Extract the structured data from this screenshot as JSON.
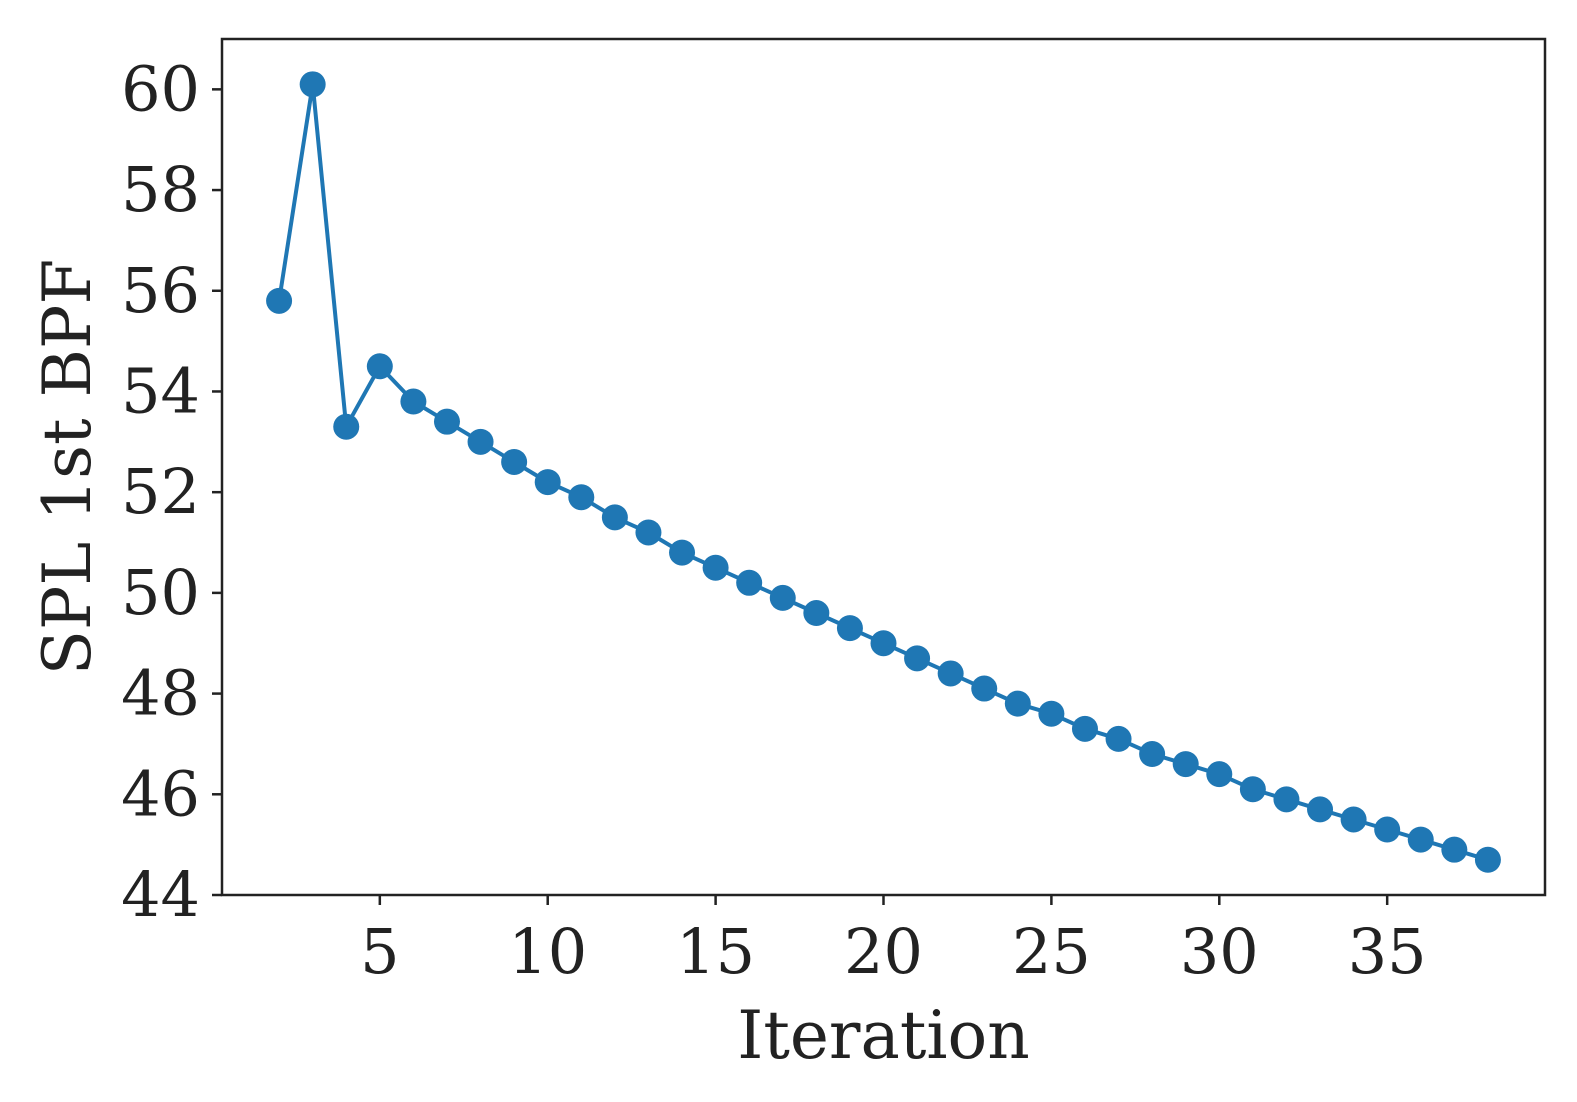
{
  "chart_data": {
    "type": "line",
    "title": "",
    "xlabel": "Iteration",
    "ylabel": "SPL 1st BPF",
    "xlim": [
      0.3,
      39.7
    ],
    "ylim": [
      44,
      61
    ],
    "x_ticks": [
      5,
      10,
      15,
      20,
      25,
      30,
      35
    ],
    "y_ticks": [
      44,
      46,
      48,
      50,
      52,
      54,
      56,
      58,
      60
    ],
    "grid": false,
    "legend": "none",
    "series": [
      {
        "color": "#1f77b4",
        "marker": "circle",
        "points": [
          {
            "x": 2,
            "y": 55.8
          },
          {
            "x": 3,
            "y": 60.1
          },
          {
            "x": 4,
            "y": 53.3
          },
          {
            "x": 5,
            "y": 54.5
          },
          {
            "x": 6,
            "y": 53.8
          },
          {
            "x": 7,
            "y": 53.4
          },
          {
            "x": 8,
            "y": 53.0
          },
          {
            "x": 9,
            "y": 52.6
          },
          {
            "x": 10,
            "y": 52.2
          },
          {
            "x": 11,
            "y": 51.9
          },
          {
            "x": 12,
            "y": 51.5
          },
          {
            "x": 13,
            "y": 51.2
          },
          {
            "x": 14,
            "y": 50.8
          },
          {
            "x": 15,
            "y": 50.5
          },
          {
            "x": 16,
            "y": 50.2
          },
          {
            "x": 17,
            "y": 49.9
          },
          {
            "x": 18,
            "y": 49.6
          },
          {
            "x": 19,
            "y": 49.3
          },
          {
            "x": 20,
            "y": 49.0
          },
          {
            "x": 21,
            "y": 48.7
          },
          {
            "x": 22,
            "y": 48.4
          },
          {
            "x": 23,
            "y": 48.1
          },
          {
            "x": 24,
            "y": 47.8
          },
          {
            "x": 25,
            "y": 47.6
          },
          {
            "x": 26,
            "y": 47.3
          },
          {
            "x": 27,
            "y": 47.1
          },
          {
            "x": 28,
            "y": 46.8
          },
          {
            "x": 29,
            "y": 46.6
          },
          {
            "x": 30,
            "y": 46.4
          },
          {
            "x": 31,
            "y": 46.1
          },
          {
            "x": 32,
            "y": 45.9
          },
          {
            "x": 33,
            "y": 45.7
          },
          {
            "x": 34,
            "y": 45.5
          },
          {
            "x": 35,
            "y": 45.3
          },
          {
            "x": 36,
            "y": 45.1
          },
          {
            "x": 37,
            "y": 44.9
          },
          {
            "x": 38,
            "y": 44.7
          }
        ]
      }
    ]
  }
}
